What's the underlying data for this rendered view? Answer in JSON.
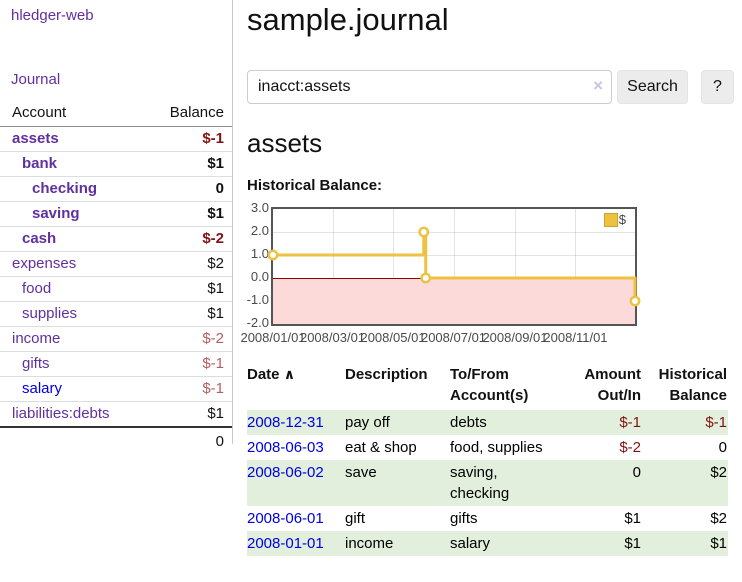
{
  "app": {
    "title": "hledger-web"
  },
  "nav": {
    "journal_label": "Journal"
  },
  "sidebar": {
    "account_header": "Account",
    "balance_header": "Balance",
    "accounts": [
      {
        "name": "assets",
        "level": 1,
        "bold": true,
        "balance": "$-1",
        "neg": "strong",
        "link": "purple"
      },
      {
        "name": "bank",
        "level": 2,
        "bold": true,
        "balance": "$1",
        "neg": "none",
        "link": "purple"
      },
      {
        "name": "checking",
        "level": 3,
        "bold": true,
        "balance": "0",
        "neg": "none",
        "link": "purple"
      },
      {
        "name": "saving",
        "level": 3,
        "bold": true,
        "balance": "$1",
        "neg": "none",
        "link": "purple"
      },
      {
        "name": "cash",
        "level": 2,
        "bold": true,
        "balance": "$-2",
        "neg": "strong",
        "link": "purple"
      },
      {
        "name": "expenses",
        "level": 1,
        "bold": false,
        "balance": "$2",
        "neg": "none",
        "link": "purple"
      },
      {
        "name": "food",
        "level": 2,
        "bold": false,
        "balance": "$1",
        "neg": "none",
        "link": "purple"
      },
      {
        "name": "supplies",
        "level": 2,
        "bold": false,
        "balance": "$1",
        "neg": "none",
        "link": "purple"
      },
      {
        "name": "income",
        "level": 1,
        "bold": false,
        "balance": "$-2",
        "neg": "soft",
        "link": "purple"
      },
      {
        "name": "gifts",
        "level": 2,
        "bold": false,
        "balance": "$-1",
        "neg": "soft",
        "link": "purple"
      },
      {
        "name": "salary",
        "level": 2,
        "bold": false,
        "balance": "$-1",
        "neg": "soft",
        "link": "blue"
      },
      {
        "name": "liabilities:debts",
        "level": 1,
        "bold": false,
        "balance": "$1",
        "neg": "none",
        "link": "purple"
      }
    ],
    "total": "0"
  },
  "header": {
    "title": "sample.journal"
  },
  "search": {
    "value": "inacct:assets",
    "clear_icon": "×",
    "button_label": "Search",
    "help_label": "?"
  },
  "account_page": {
    "heading": "assets",
    "chart_label": "Historical Balance:"
  },
  "chart_data": {
    "type": "line",
    "step": true,
    "title": "Historical Balance:",
    "legend_position": "top-right",
    "xlim_days": [
      0,
      365
    ],
    "ylim": [
      -2,
      3
    ],
    "series": [
      {
        "name": "$",
        "color": "#edc240",
        "points": [
          {
            "date": "2008-01-01",
            "day": 0,
            "value": 1
          },
          {
            "date": "2008-06-01",
            "day": 152,
            "value": 2
          },
          {
            "date": "2008-06-03",
            "day": 154,
            "value": 0
          },
          {
            "date": "2008-12-31",
            "day": 365,
            "value": -1
          }
        ]
      }
    ],
    "x_ticks": [
      {
        "day": 0,
        "label": "2008/01/01"
      },
      {
        "day": 60,
        "label": "2008/03/01"
      },
      {
        "day": 121,
        "label": "2008/05/01"
      },
      {
        "day": 182,
        "label": "2008/07/01"
      },
      {
        "day": 244,
        "label": "2008/09/01"
      },
      {
        "day": 305,
        "label": "2008/11/01"
      }
    ],
    "y_ticks": [
      {
        "value": 3,
        "label": "3.0"
      },
      {
        "value": 2,
        "label": "2.0"
      },
      {
        "value": 1,
        "label": "1.0"
      },
      {
        "value": 0,
        "label": "0.0"
      },
      {
        "value": -1,
        "label": "-1.0"
      },
      {
        "value": -2,
        "label": "-2.0"
      }
    ],
    "negative_region_color": "#fcdada",
    "zero_line_color": "#8b0000",
    "grid": true
  },
  "register": {
    "headers": {
      "date": "Date",
      "sort_icon": "∧",
      "description": "Description",
      "tofrom_line1": "To/From",
      "tofrom_line2": "Account(s)",
      "amount_line1": "Amount",
      "amount_line2": "Out/In",
      "balance_line1": "Historical",
      "balance_line2": "Balance"
    },
    "rows": [
      {
        "date": "2008-12-31",
        "description": "pay off",
        "accounts": [
          "debts"
        ],
        "amount": "$-1",
        "amount_negative": true,
        "balance": "$-1",
        "balance_negative": true,
        "shaded": true
      },
      {
        "date": "2008-06-03",
        "description": "eat & shop",
        "accounts": [
          "food, supplies"
        ],
        "amount": "$-2",
        "amount_negative": true,
        "balance": "0",
        "balance_negative": false,
        "shaded": false
      },
      {
        "date": "2008-06-02",
        "description": "save",
        "accounts": [
          "saving,",
          "checking"
        ],
        "amount": "0",
        "amount_negative": false,
        "balance": "$2",
        "balance_negative": false,
        "shaded": true
      },
      {
        "date": "2008-06-01",
        "description": "gift",
        "accounts": [
          "gifts"
        ],
        "amount": "$1",
        "amount_negative": false,
        "balance": "$2",
        "balance_negative": false,
        "shaded": false
      },
      {
        "date": "2008-01-01",
        "description": "income",
        "accounts": [
          "salary"
        ],
        "amount": "$1",
        "amount_negative": false,
        "balance": "$1",
        "balance_negative": false,
        "shaded": true
      }
    ]
  },
  "colors": {
    "link_purple": "#60309f",
    "link_blue": "#0000e0",
    "negative_strong": "#801414",
    "negative_soft": "#b25f5f",
    "row_shade_green": "#e2efdc",
    "chart_line_yellow": "#edc240",
    "chart_negative_pink": "#fcdada",
    "chart_zero_line": "#8b0000",
    "button_gray": "#ececec"
  }
}
